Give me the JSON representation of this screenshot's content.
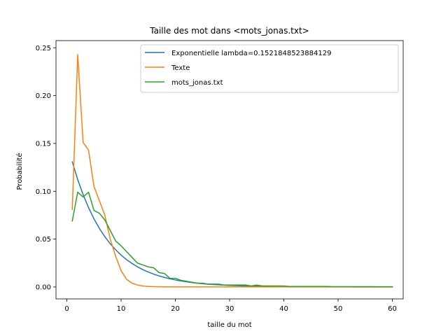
{
  "chart_data": {
    "type": "line",
    "title": "Taille des mot dans <mots_jonas.txt>",
    "xlabel": "taille du mot",
    "ylabel": "Probabilité",
    "xlim": [
      -2,
      62
    ],
    "ylim": [
      -0.0125,
      0.2575
    ],
    "xticks": [
      0,
      10,
      20,
      30,
      40,
      50,
      60
    ],
    "xtick_labels": [
      "0",
      "10",
      "20",
      "30",
      "40",
      "50",
      "60"
    ],
    "yticks": [
      0.0,
      0.05,
      0.1,
      0.15,
      0.2,
      0.25
    ],
    "ytick_labels": [
      "0.00",
      "0.05",
      "0.10",
      "0.15",
      "0.20",
      "0.25"
    ],
    "grid": false,
    "legend_position": "top-right",
    "series": [
      {
        "name": "Exponentielle lambda=0.1521848523884129",
        "color": "#1f77b4",
        "x": [
          1,
          2,
          3,
          4,
          5,
          6,
          7,
          8,
          9,
          10,
          11,
          12,
          13,
          14,
          15,
          16,
          17,
          18,
          19,
          20,
          21,
          22,
          23,
          24,
          25,
          26,
          27,
          28,
          29,
          30,
          31,
          32,
          33,
          34,
          35,
          36,
          37,
          38,
          39,
          40,
          41,
          42,
          43,
          44,
          45,
          46,
          47,
          48,
          49,
          50,
          51,
          52,
          53,
          54,
          55,
          56,
          57,
          58,
          59,
          60
        ],
        "y": [
          0.1308,
          0.1123,
          0.0965,
          0.0829,
          0.0712,
          0.0612,
          0.0525,
          0.0451,
          0.0388,
          0.0333,
          0.0286,
          0.0246,
          0.0211,
          0.0181,
          0.0156,
          0.0134,
          0.0115,
          0.0099,
          0.0085,
          0.0073,
          0.0063,
          0.0054,
          0.0046,
          0.004,
          0.0034,
          0.0029,
          0.0025,
          0.0022,
          0.0019,
          0.0016,
          0.0014,
          0.0012,
          0.001,
          0.0009,
          0.0008,
          0.0006,
          0.0006,
          0.0005,
          0.0004,
          0.0003,
          0.0003,
          0.0003,
          0.0002,
          0.0002,
          0.0002,
          0.0001,
          0.0001,
          0.0001,
          0.0001,
          0.0001,
          0.0001,
          0.0001,
          0.0,
          0.0,
          0.0,
          0.0,
          0.0,
          0.0,
          0.0,
          0.0
        ]
      },
      {
        "name": "Texte",
        "color": "#ff7f0e",
        "x": [
          1,
          2,
          3,
          4,
          5,
          6,
          7,
          8,
          9,
          10,
          11,
          12,
          13,
          14,
          15,
          16,
          17,
          18,
          19,
          20,
          21,
          22,
          23,
          24,
          25,
          26,
          27,
          28,
          29,
          30,
          31,
          32,
          33,
          34,
          35,
          36,
          37,
          38,
          39,
          40,
          41,
          42,
          43,
          44,
          45,
          46,
          47,
          48,
          49,
          50,
          51,
          52,
          53,
          54,
          55,
          56,
          57,
          58,
          59,
          60
        ],
        "y": [
          0.081,
          0.243,
          0.151,
          0.143,
          0.105,
          0.09,
          0.075,
          0.05,
          0.032,
          0.017,
          0.008,
          0.004,
          0.002,
          0.001,
          0.0005,
          0.0003,
          0.0002,
          0.0001,
          0,
          0,
          0,
          0,
          0,
          0,
          0,
          0,
          0,
          0,
          0,
          0,
          0,
          0,
          0,
          0,
          0,
          0,
          0,
          0,
          0,
          0,
          0,
          0,
          0,
          0,
          0,
          0,
          0,
          0,
          0,
          0,
          0,
          0,
          0,
          0,
          0,
          0,
          0,
          0,
          0,
          0
        ]
      },
      {
        "name": "mots_jonas.txt",
        "color": "#2ca02c",
        "x": [
          1,
          2,
          3,
          4,
          5,
          6,
          7,
          8,
          9,
          10,
          11,
          12,
          13,
          14,
          15,
          16,
          17,
          18,
          19,
          20,
          21,
          22,
          23,
          24,
          25,
          26,
          27,
          28,
          29,
          30,
          31,
          32,
          33,
          34,
          35,
          36,
          37,
          38,
          39,
          40,
          41,
          42,
          43,
          44,
          45,
          46,
          47,
          48,
          49,
          50,
          51,
          52,
          53,
          54,
          55,
          56,
          57,
          58,
          59,
          60
        ],
        "y": [
          0.069,
          0.099,
          0.094,
          0.099,
          0.08,
          0.077,
          0.07,
          0.059,
          0.048,
          0.043,
          0.037,
          0.031,
          0.025,
          0.023,
          0.021,
          0.02,
          0.015,
          0.014,
          0.009,
          0.009,
          0.007,
          0.006,
          0.005,
          0.004,
          0.004,
          0.003,
          0.003,
          0.003,
          0.002,
          0.002,
          0.002,
          0.002,
          0.002,
          0.001,
          0.002,
          0.001,
          0.001,
          0.001,
          0.001,
          0.001,
          0.0005,
          0.0005,
          0.0005,
          0.0005,
          0.0005,
          0.0005,
          0.0005,
          0.0005,
          0.0003,
          0.0003,
          0.0003,
          0.0003,
          0.0003,
          0.0003,
          0.0003,
          0.0003,
          0.0002,
          0.0002,
          0.0002,
          0.0002
        ]
      }
    ]
  }
}
